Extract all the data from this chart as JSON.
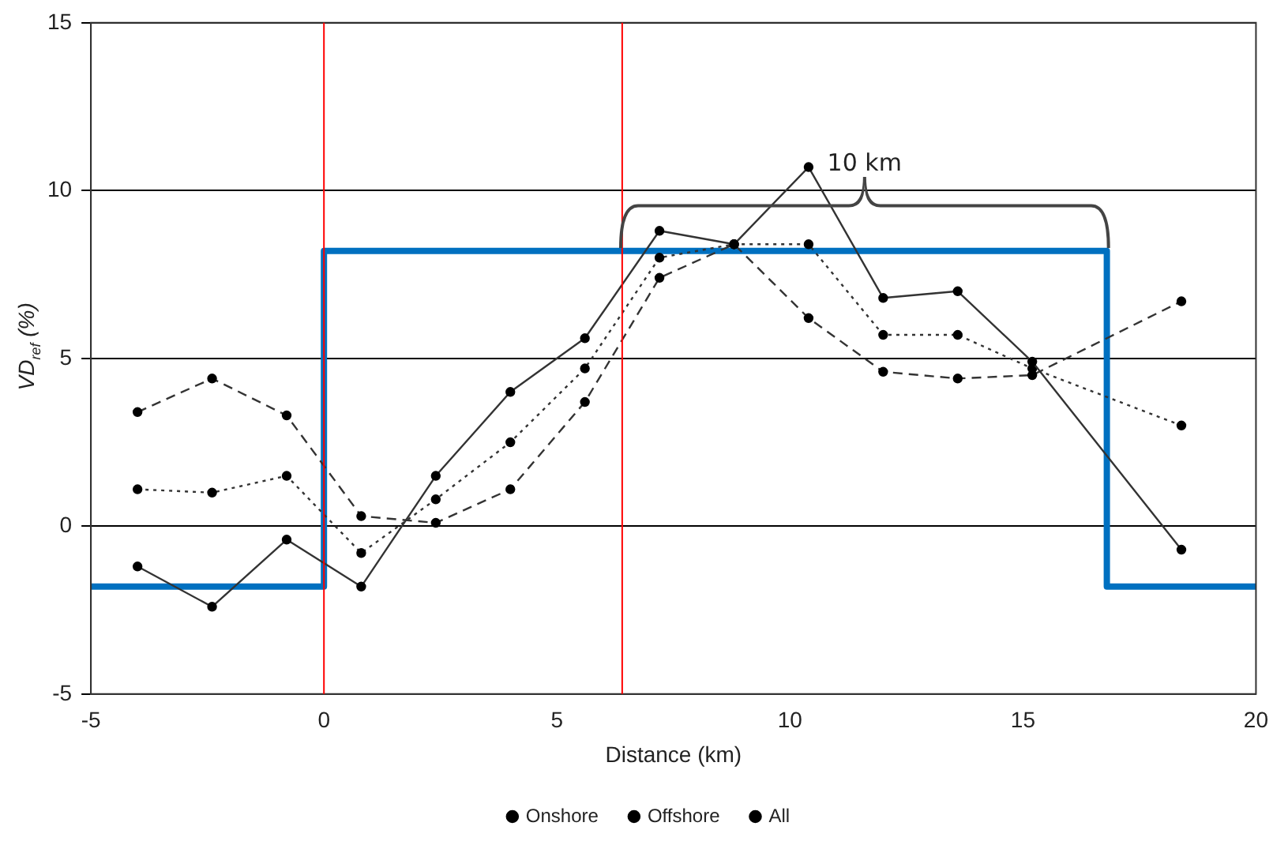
{
  "chart_data": {
    "type": "line",
    "xlabel": "Distance (km)",
    "ylabel": "VD$_{ref}$ (%)",
    "xlim": [
      -5,
      20
    ],
    "xticks": [
      -5,
      0,
      5,
      10,
      15,
      20
    ],
    "ylim": [
      -5,
      15
    ],
    "yticks": [
      -5,
      0,
      5,
      10,
      15
    ],
    "grid": "y",
    "legend": "bottom",
    "marker": "circle",
    "series": [
      {
        "name": "Onshore",
        "color": "#333333",
        "line_style": "solid",
        "x": [
          -4,
          -2.4,
          -0.8,
          0.8,
          2.4,
          4,
          5.6,
          7.2,
          8.8,
          10.4,
          12,
          13.6,
          15.2,
          18.4
        ],
        "values": [
          -1.2,
          -2.4,
          -0.4,
          -1.8,
          1.5,
          4,
          5.6,
          8.8,
          8.4,
          10.7,
          6.8,
          7,
          4.9,
          -0.7
        ]
      },
      {
        "name": "Offshore",
        "color": "#333333",
        "line_style": "dashed",
        "x": [
          -4,
          -2.4,
          -0.8,
          0.8,
          2.4,
          4,
          5.6,
          7.2,
          8.8,
          10.4,
          12,
          13.6,
          15.2,
          18.4
        ],
        "values": [
          3.4,
          4.4,
          3.3,
          0.3,
          0.1,
          1.1,
          3.7,
          7.4,
          8.4,
          6.2,
          4.6,
          4.4,
          4.5,
          6.7
        ]
      },
      {
        "name": "All",
        "color": "#333333",
        "line_style": "dotted",
        "x": [
          -4,
          -2.4,
          -0.8,
          0.8,
          2.4,
          4,
          5.6,
          7.2,
          8.8,
          10.4,
          12,
          13.6,
          15.2,
          18.4
        ],
        "values": [
          1.1,
          1,
          1.5,
          -0.8,
          0.8,
          2.5,
          4.7,
          8,
          8.4,
          8.4,
          5.7,
          5.7,
          4.7,
          3
        ]
      },
      {
        "type": "step",
        "color": "#0070c0",
        "marker": "none",
        "x": [
          -5,
          0,
          16.8,
          20
        ],
        "values": [
          -1.8,
          8.2,
          -1.8,
          -1.8
        ]
      }
    ],
    "ref_lines": [
      {
        "axis": "x",
        "value": 0,
        "color": "#ff0000"
      },
      {
        "axis": "x",
        "value": 6.4,
        "color": "#ff0000"
      }
    ],
    "annotations": [
      "10 km"
    ]
  }
}
